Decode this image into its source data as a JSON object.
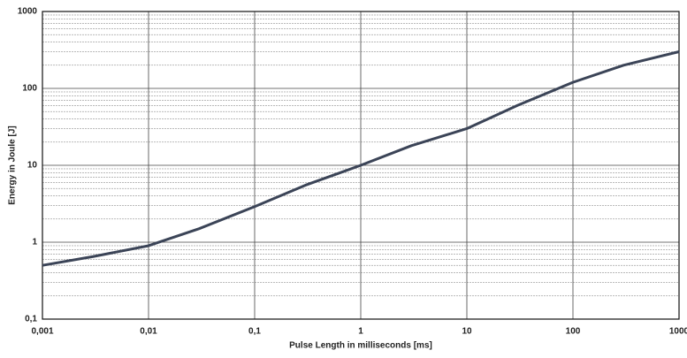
{
  "chart_data": {
    "type": "line",
    "x_label": "Pulse Length in milliseconds [ms]",
    "y_label": "Energy in Joule [J]",
    "x_log": true,
    "y_log": true,
    "grid": true,
    "minor_grid": true,
    "xlim": [
      0.001,
      1000
    ],
    "ylim": [
      0.1,
      1000
    ],
    "xticks": [
      {
        "value": 0.001,
        "label": "0,001"
      },
      {
        "value": 0.01,
        "label": "0,01"
      },
      {
        "value": 0.1,
        "label": "0,1"
      },
      1,
      10,
      100,
      1000
    ],
    "yticks": [
      {
        "value": 0.1,
        "label": "0,1"
      },
      1,
      10,
      100,
      1000
    ],
    "series": [
      {
        "color": "#3b4457",
        "x": [
          0.001,
          0.003,
          0.01,
          0.03,
          0.1,
          0.3,
          1,
          3,
          10,
          30,
          100,
          300,
          1000
        ],
        "values": [
          0.5,
          0.65,
          0.9,
          1.5,
          2.9,
          5.5,
          10,
          18,
          30,
          60,
          120,
          200,
          300
        ]
      }
    ]
  }
}
